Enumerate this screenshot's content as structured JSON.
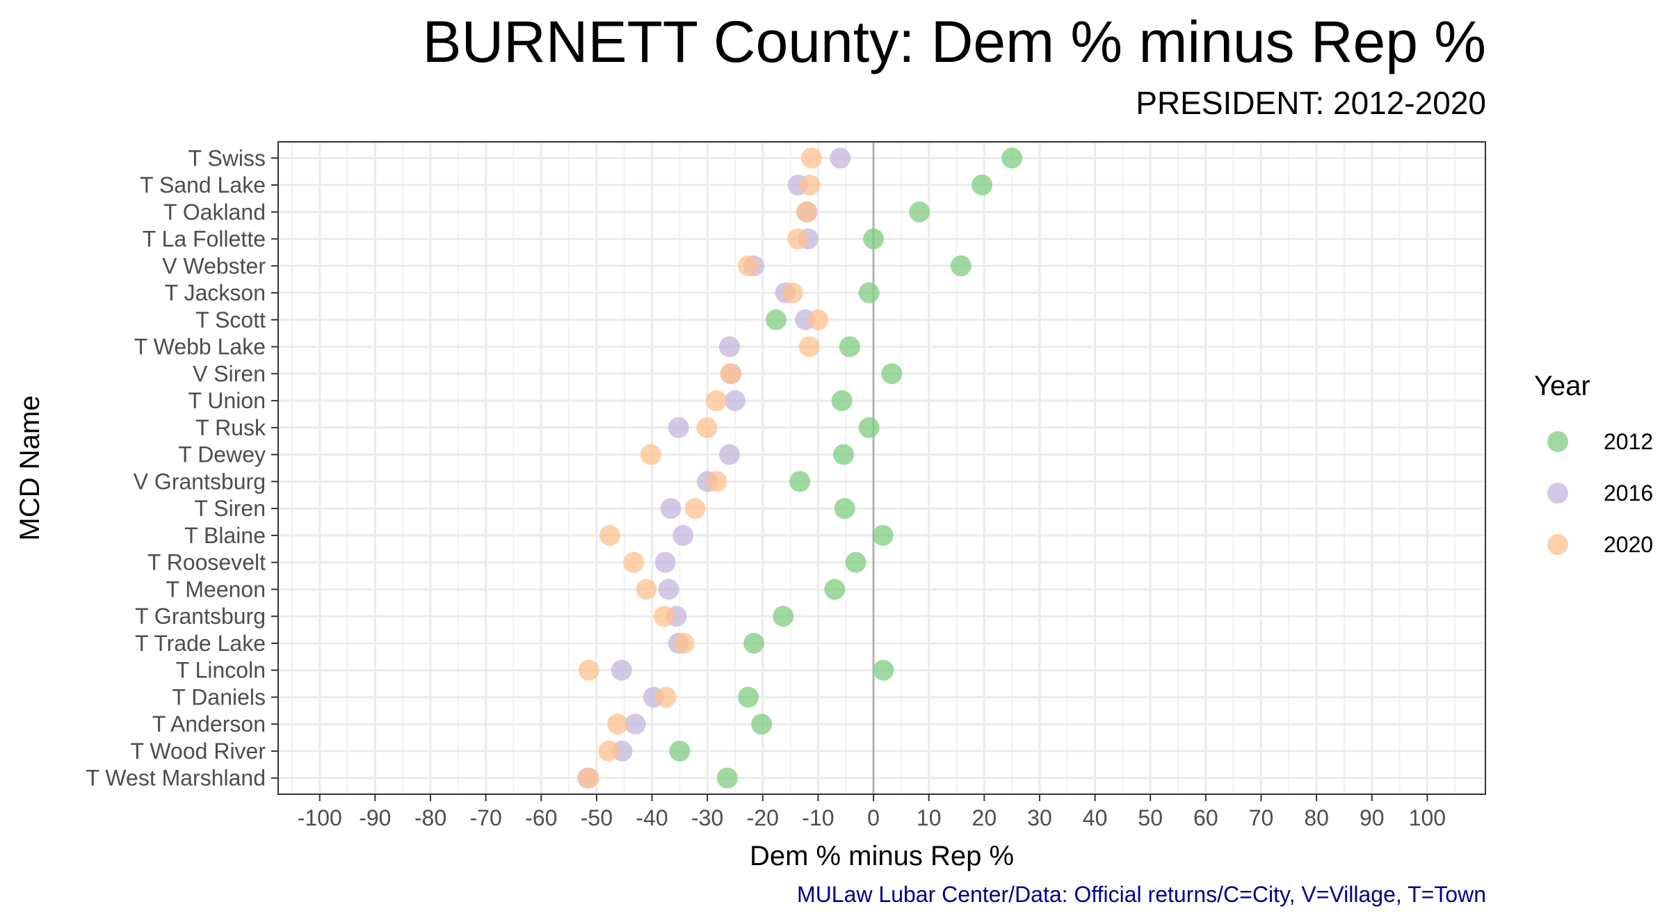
{
  "chart_data": {
    "type": "scatter",
    "title": "BURNETT County: Dem % minus Rep %",
    "subtitle": "PRESIDENT: 2012-2020",
    "xlabel": "Dem % minus Rep %",
    "ylabel": "MCD Name",
    "caption": "MULaw Lubar Center/Data: Official returns/C=City, V=Village, T=Town",
    "xlim": [
      -107.5,
      110.5
    ],
    "x_ticks": [
      -100,
      -90,
      -80,
      -70,
      -60,
      -50,
      -40,
      -30,
      -20,
      -10,
      0,
      10,
      20,
      30,
      40,
      50,
      60,
      70,
      80,
      90,
      100
    ],
    "x_tick_labels": [
      "-100",
      "-90",
      "-80",
      "-70",
      "-60",
      "-50",
      "-40",
      "-30",
      "-20",
      "-10",
      "0",
      "10",
      "20",
      "30",
      "40",
      "50",
      "60",
      "70",
      "80",
      "90",
      "100"
    ],
    "reference_line_x": 0,
    "grid": true,
    "legend": {
      "title": "Year",
      "position": "right"
    },
    "categories": [
      "T Swiss",
      "T Sand Lake",
      "T Oakland",
      "T La Follette",
      "V Webster",
      "T Jackson",
      "T Scott",
      "T Webb Lake",
      "V Siren",
      "T Union",
      "T Rusk",
      "T Dewey",
      "V Grantsburg",
      "T Siren",
      "T Blaine",
      "T Roosevelt",
      "T Meenon",
      "T Grantsburg",
      "T Trade Lake",
      "T Lincoln",
      "T Daniels",
      "T Anderson",
      "T Wood River",
      "T West Marshland"
    ],
    "series": [
      {
        "name": "2012",
        "color": "#7fcc7f",
        "values": [
          25.0,
          19.6,
          8.3,
          0.0,
          15.8,
          -0.8,
          -17.6,
          -4.3,
          3.3,
          -5.7,
          -0.8,
          -5.4,
          -13.3,
          -5.2,
          1.7,
          -3.2,
          -7.0,
          -16.3,
          -21.6,
          1.8,
          -22.6,
          -20.2,
          -35.0,
          -26.4
        ]
      },
      {
        "name": "2016",
        "color": "#c4b5dc",
        "values": [
          -6.0,
          -13.6,
          -12.0,
          -11.8,
          -21.6,
          -15.9,
          -12.3,
          -26.0,
          -25.7,
          -25.0,
          -35.2,
          -26.0,
          -30.0,
          -36.6,
          -34.4,
          -37.6,
          -37.0,
          -35.6,
          -35.2,
          -45.5,
          -39.7,
          -43.0,
          -45.4,
          -51.6
        ]
      },
      {
        "name": "2020",
        "color": "#ffc28e",
        "values": [
          -11.2,
          -11.5,
          -12.1,
          -13.7,
          -22.6,
          -14.6,
          -10.0,
          -11.6,
          -25.8,
          -28.4,
          -30.1,
          -40.2,
          -28.3,
          -32.2,
          -47.6,
          -43.3,
          -41.0,
          -37.8,
          -34.2,
          -51.4,
          -37.5,
          -46.2,
          -47.8,
          -51.4
        ]
      }
    ]
  }
}
